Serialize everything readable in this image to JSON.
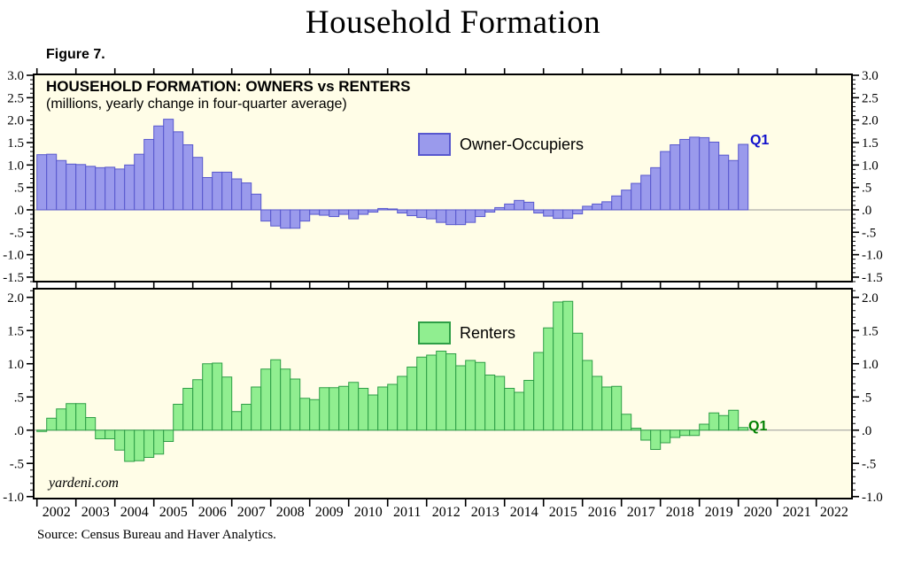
{
  "page": {
    "title": "Household Formation",
    "figure_label": "Figure 7.",
    "source": "Source: Census Bureau and Haver Analytics.",
    "watermark": "yardeni.com"
  },
  "style": {
    "panel_bg": "#FFFDE7",
    "panel_border": "#000000",
    "zero_line": "#999999"
  },
  "x_axis": {
    "years": [
      "2002",
      "2003",
      "2004",
      "2005",
      "2006",
      "2007",
      "2008",
      "2009",
      "2010",
      "2011",
      "2012",
      "2013",
      "2014",
      "2015",
      "2016",
      "2017",
      "2018",
      "2019",
      "2020",
      "2021",
      "2022"
    ]
  },
  "chart_data": [
    {
      "type": "bar",
      "panel": "owner-occupiers",
      "title": "HOUSEHOLD FORMATION: OWNERS vs RENTERS",
      "subtitle": "(millions, yearly change in four-quarter average)",
      "legend": "Owner-Occupiers",
      "last_bar_label": "Q1",
      "frequency": "quarterly",
      "x_start": "2002 Q1",
      "x_end": "2020 Q1",
      "ylim": [
        -1.6,
        3.02
      ],
      "yticks": [
        3.0,
        2.5,
        2.0,
        1.5,
        1.0,
        0.5,
        0.0,
        -0.5,
        -1.0,
        -1.5
      ],
      "ytick_labels": [
        "3.0",
        "2.5",
        "2.0",
        "1.5",
        "1.0",
        ".5",
        ".0",
        "-.5",
        "-1.0",
        "-1.5"
      ],
      "bar_fill": "#9A9AEC",
      "bar_stroke": "#5858CE",
      "label_color": "#1111CC",
      "values": [
        1.23,
        1.24,
        1.1,
        1.02,
        1.01,
        0.97,
        0.94,
        0.95,
        0.91,
        1.0,
        1.24,
        1.57,
        1.87,
        2.02,
        1.74,
        1.45,
        1.17,
        0.72,
        0.84,
        0.84,
        0.69,
        0.6,
        0.35,
        -0.25,
        -0.36,
        -0.41,
        -0.41,
        -0.25,
        -0.1,
        -0.12,
        -0.15,
        -0.1,
        -0.2,
        -0.1,
        -0.05,
        0.03,
        0.02,
        -0.07,
        -0.13,
        -0.17,
        -0.2,
        -0.28,
        -0.33,
        -0.33,
        -0.28,
        -0.15,
        -0.05,
        0.05,
        0.13,
        0.21,
        0.17,
        -0.07,
        -0.14,
        -0.19,
        -0.19,
        -0.09,
        0.08,
        0.13,
        0.18,
        0.31,
        0.44,
        0.59,
        0.77,
        0.94,
        1.3,
        1.45,
        1.57,
        1.62,
        1.61,
        1.51,
        1.22,
        1.1,
        1.46
      ]
    },
    {
      "type": "bar",
      "panel": "renters",
      "legend": "Renters",
      "last_bar_label": "Q1",
      "frequency": "quarterly",
      "x_start": "2002 Q1",
      "x_end": "2020 Q1",
      "ylim": [
        -1.03,
        2.13
      ],
      "yticks": [
        2.0,
        1.5,
        1.0,
        0.5,
        0.0,
        -0.5,
        -1.0
      ],
      "ytick_labels": [
        "2.0",
        "1.5",
        "1.0",
        ".5",
        ".0",
        "-.5",
        "-1.0"
      ],
      "bar_fill": "#90EE90",
      "bar_stroke": "#2E9E46",
      "label_color": "#008000",
      "values": [
        -0.02,
        0.18,
        0.32,
        0.4,
        0.4,
        0.19,
        -0.13,
        -0.13,
        -0.3,
        -0.47,
        -0.46,
        -0.41,
        -0.36,
        -0.17,
        0.39,
        0.63,
        0.76,
        1.0,
        1.01,
        0.8,
        0.28,
        0.39,
        0.65,
        0.92,
        1.06,
        0.92,
        0.77,
        0.48,
        0.46,
        0.64,
        0.64,
        0.66,
        0.72,
        0.63,
        0.53,
        0.65,
        0.69,
        0.81,
        0.95,
        1.1,
        1.13,
        1.19,
        1.15,
        0.97,
        1.05,
        1.02,
        0.83,
        0.81,
        0.63,
        0.57,
        0.75,
        1.17,
        1.54,
        1.93,
        1.94,
        1.46,
        1.05,
        0.81,
        0.65,
        0.66,
        0.24,
        0.03,
        -0.15,
        -0.29,
        -0.19,
        -0.11,
        -0.08,
        -0.08,
        0.09,
        0.26,
        0.22,
        0.3,
        0.04
      ]
    }
  ]
}
